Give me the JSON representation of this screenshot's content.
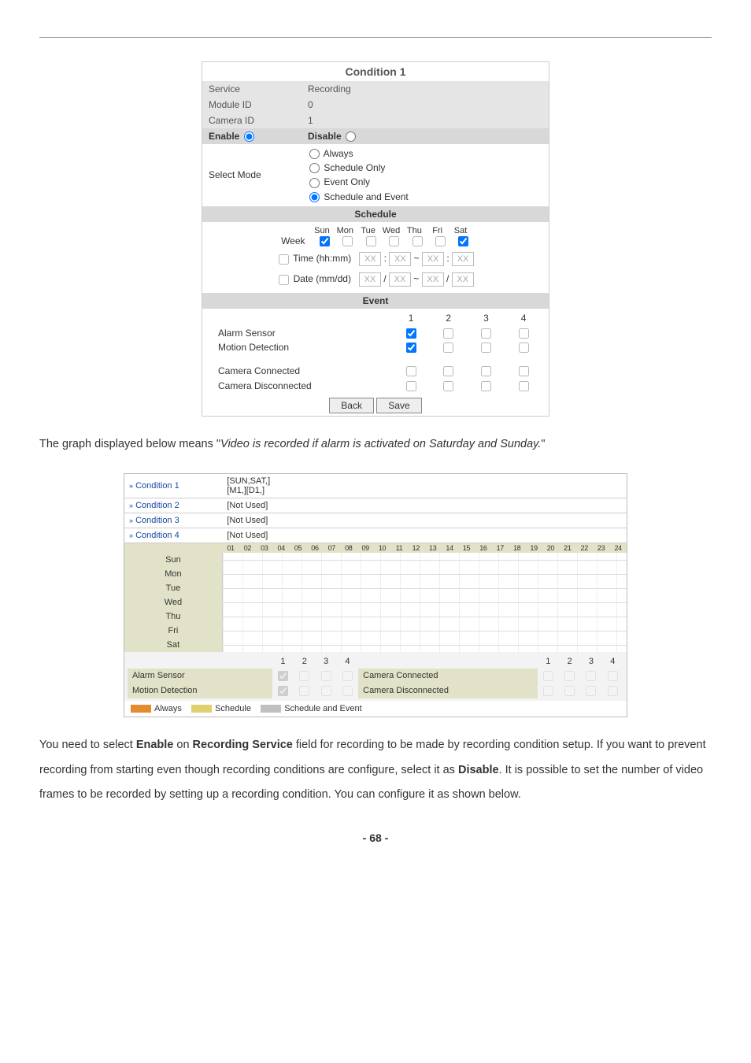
{
  "panel": {
    "title": "Condition 1",
    "rows": {
      "service_label": "Service",
      "service_value": "Recording",
      "module_label": "Module ID",
      "module_value": "0",
      "camera_label": "Camera ID",
      "camera_value": "1"
    },
    "enable_label": "Enable",
    "disable_label": "Disable",
    "select_mode_label": "Select Mode",
    "modes": {
      "always": "Always",
      "schedule_only": "Schedule Only",
      "event_only": "Event Only",
      "schedule_and_event": "Schedule and Event"
    },
    "schedule_header": "Schedule",
    "week_label": "Week",
    "days": [
      "Sun",
      "Mon",
      "Tue",
      "Wed",
      "Thu",
      "Fri",
      "Sat"
    ],
    "day_checked": [
      true,
      false,
      false,
      false,
      false,
      false,
      true
    ],
    "time_label": "Time (hh:mm)",
    "date_label": "Date (mm/dd)",
    "placeholder": "XX",
    "event_header": "Event",
    "event_cols": [
      "1",
      "2",
      "3",
      "4"
    ],
    "event_rows": {
      "alarm": "Alarm Sensor",
      "motion": "Motion Detection",
      "cam_conn": "Camera Connected",
      "cam_disc": "Camera Disconnected"
    },
    "alarm_checked": [
      true,
      false,
      false,
      false
    ],
    "motion_checked": [
      true,
      false,
      false,
      false
    ],
    "back_btn": "Back",
    "save_btn": "Save"
  },
  "para1_prefix": "The graph displayed below means \"",
  "para1_italic": "Video is recorded if alarm is activated on Saturday and Sunday.",
  "para1_suffix": "\"",
  "chart": {
    "conditions": [
      {
        "label": "Condition 1",
        "value": "[SUN,SAT,]\n[M1,][D1,]"
      },
      {
        "label": "Condition 2",
        "value": "[Not Used]"
      },
      {
        "label": "Condition 3",
        "value": "[Not Used]"
      },
      {
        "label": "Condition 4",
        "value": "[Not Used]"
      }
    ],
    "hours": [
      "01",
      "02",
      "03",
      "04",
      "05",
      "06",
      "07",
      "08",
      "09",
      "10",
      "11",
      "12",
      "13",
      "14",
      "15",
      "16",
      "17",
      "18",
      "19",
      "20",
      "21",
      "22",
      "23",
      "24"
    ],
    "dows": [
      "Sun",
      "Mon",
      "Tue",
      "Wed",
      "Thu",
      "Fri",
      "Sat"
    ],
    "footer": {
      "alarm": "Alarm Sensor",
      "motion": "Motion Detection",
      "cam_conn": "Camera Connected",
      "cam_disc": "Camera Disconnected",
      "nums": [
        "1",
        "2",
        "3",
        "4"
      ]
    },
    "legend": {
      "always": {
        "label": "Always",
        "color": "#e58a2e"
      },
      "schedule": {
        "label": "Schedule",
        "color": "#e0d070"
      },
      "sae": {
        "label": "Schedule and Event",
        "color": "#c0c0c0"
      }
    },
    "colors": {
      "header_bg": "#e2e2c8",
      "cond_label": "#1a4aa0"
    }
  },
  "para2": "You need to select <b>Enable</b> on <b>Recording Service</b> field for recording to be made by recording condition setup. If you want to prevent recording from starting even though recording conditions are configure, select it as <b>Disable</b>. It is possible to set the number of video frames to be recorded by setting up a recording condition. You can configure it as shown below.",
  "page_num": "- 68 -"
}
